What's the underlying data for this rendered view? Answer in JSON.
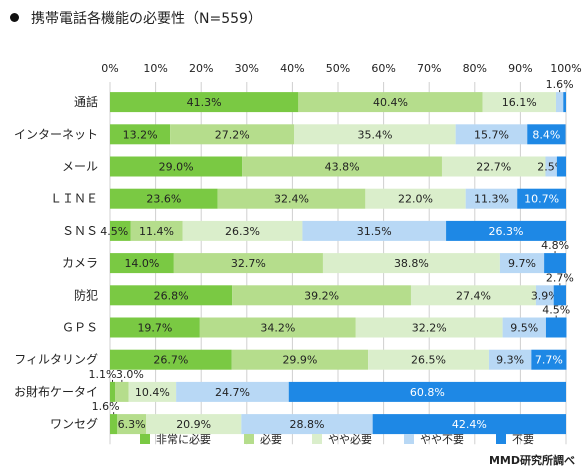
{
  "title": "携帯電話各機能の必要性（N=559）",
  "credit": "MMD研究所調べ",
  "chart_data": {
    "type": "bar",
    "orientation": "horizontal",
    "stacked": "percent",
    "title": "携帯電話各機能の必要性（N=559）",
    "categories": [
      "通話",
      "インターネット",
      "メール",
      "ＬＩＮＥ",
      "ＳＮＳ",
      "カメラ",
      "防犯",
      "ＧＰＳ",
      "フィルタリング",
      "お財布ケータイ",
      "ワンセグ"
    ],
    "x_ticks": [
      "0%",
      "10%",
      "20%",
      "30%",
      "40%",
      "50%",
      "60%",
      "70%",
      "80%",
      "90%",
      "100%"
    ],
    "xlim": [
      0,
      100
    ],
    "legend_position": "bottom",
    "series": [
      {
        "name": "非常に必要",
        "color": "#7ac943",
        "values": [
          41.3,
          13.2,
          29.0,
          23.6,
          4.5,
          14.0,
          26.8,
          19.7,
          26.7,
          1.1,
          1.6
        ]
      },
      {
        "name": "必要",
        "color": "#b5dd8c",
        "values": [
          40.4,
          27.2,
          43.8,
          32.4,
          11.4,
          32.7,
          39.2,
          34.2,
          29.9,
          3.0,
          6.3
        ]
      },
      {
        "name": "やや必要",
        "color": "#daeecb",
        "values": [
          16.1,
          35.4,
          22.7,
          22.0,
          26.3,
          38.8,
          27.4,
          32.2,
          26.5,
          10.4,
          20.9
        ]
      },
      {
        "name": "やや不要",
        "color": "#b8d8f5",
        "values": [
          1.6,
          15.7,
          2.5,
          11.3,
          31.5,
          9.7,
          3.9,
          9.5,
          9.3,
          24.7,
          28.8
        ]
      },
      {
        "name": "不要",
        "color": "#1e88e5",
        "values": [
          0.6,
          8.4,
          2.0,
          10.7,
          26.3,
          4.8,
          2.7,
          4.5,
          7.7,
          60.8,
          42.4
        ]
      }
    ],
    "labels": [
      [
        "41.3%",
        "40.4%",
        "16.1%",
        "1.6%",
        ""
      ],
      [
        "13.2%",
        "27.2%",
        "35.4%",
        "15.7%",
        "8.4%"
      ],
      [
        "29.0%",
        "43.8%",
        "22.7%",
        "2.5%",
        ""
      ],
      [
        "23.6%",
        "32.4%",
        "22.0%",
        "11.3%",
        "10.7%"
      ],
      [
        "4.5%",
        "11.4%",
        "26.3%",
        "31.5%",
        "26.3%"
      ],
      [
        "14.0%",
        "32.7%",
        "38.8%",
        "9.7%",
        "4.8%"
      ],
      [
        "26.8%",
        "39.2%",
        "27.4%",
        "3.9%",
        "2.7%"
      ],
      [
        "19.7%",
        "34.2%",
        "32.2%",
        "9.5%",
        "4.5%"
      ],
      [
        "26.7%",
        "29.9%",
        "26.5%",
        "9.3%",
        "7.7%"
      ],
      [
        "1.1%",
        "3.0%",
        "10.4%",
        "24.7%",
        "60.8%"
      ],
      [
        "1.6%",
        "6.3%",
        "20.9%",
        "28.8%",
        "42.4%"
      ]
    ]
  }
}
